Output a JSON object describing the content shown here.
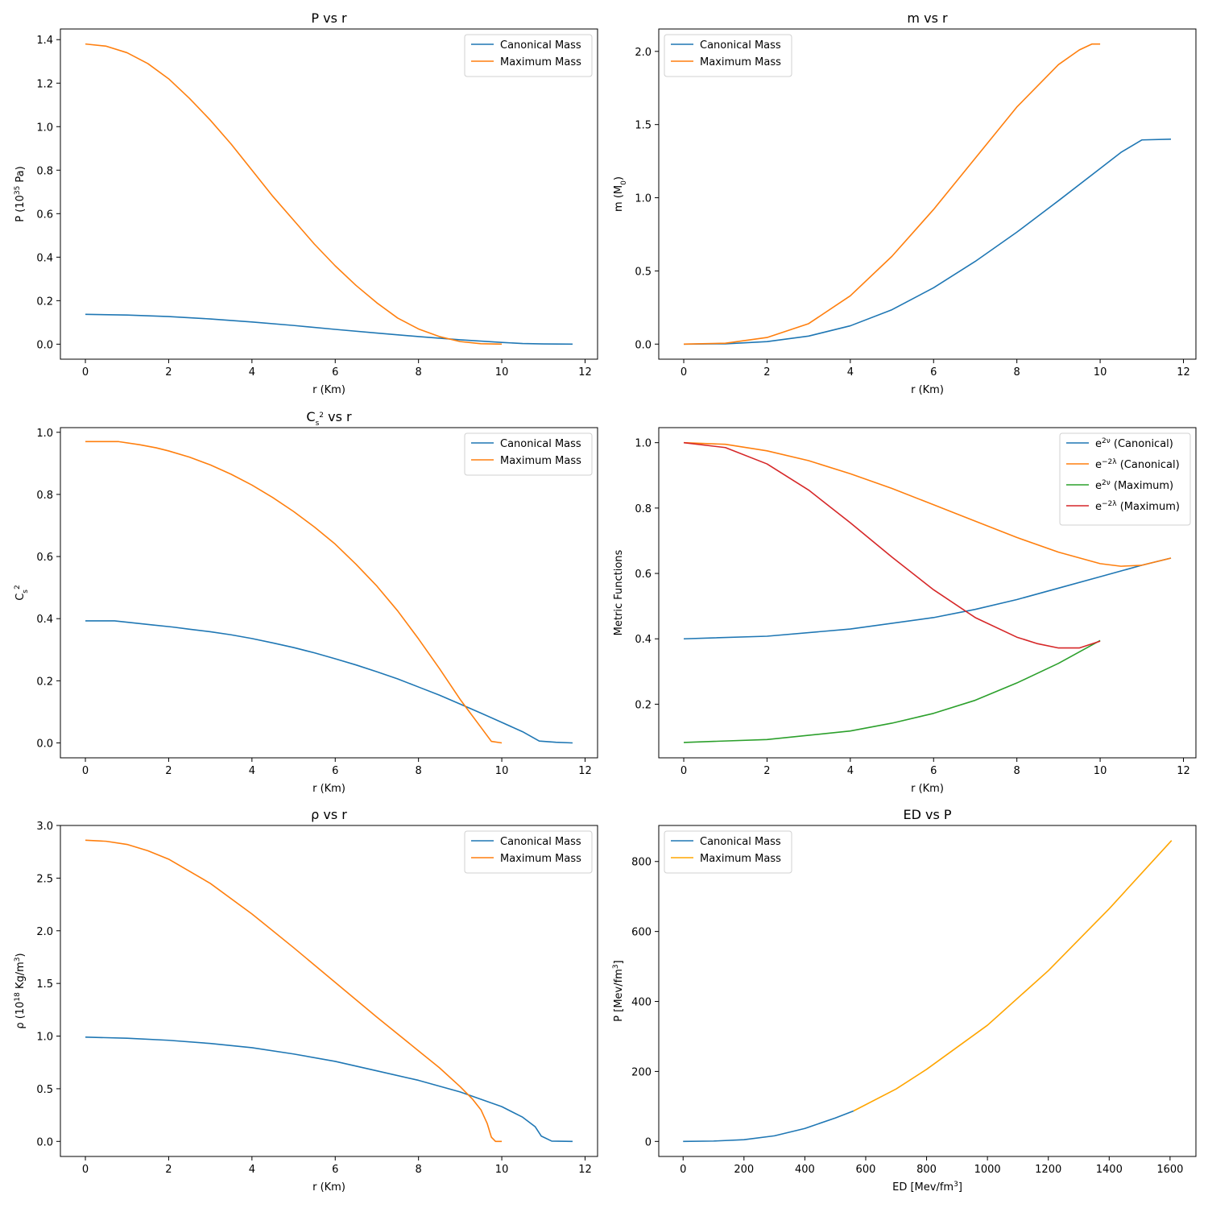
{
  "chart_data": [
    {
      "id": "pressure",
      "type": "line",
      "title": "P vs r",
      "xlabel": "r (Km)",
      "ylabel": "P (10^35 Pa)",
      "xlim": [
        -0.6,
        12.3
      ],
      "ylim": [
        -0.069,
        1.449
      ],
      "xticks": [
        0,
        2,
        4,
        6,
        8,
        10,
        12
      ],
      "yticks": [
        0.0,
        0.2,
        0.4,
        0.6,
        0.8,
        1.0,
        1.2,
        1.4
      ],
      "ytick_decimals": 1,
      "legend": "top-right",
      "series": [
        {
          "name": "Canonical Mass",
          "color": "#1f77b4",
          "x": [
            0,
            1,
            2,
            3,
            4,
            5,
            6,
            7,
            8,
            9,
            10,
            10.5,
            11,
            11.7
          ],
          "y": [
            0.137,
            0.134,
            0.127,
            0.116,
            0.102,
            0.086,
            0.068,
            0.051,
            0.035,
            0.02,
            0.008,
            0.003,
            0.001,
            0.0
          ]
        },
        {
          "name": "Maximum Mass",
          "color": "#ff7f0e",
          "x": [
            0,
            0.5,
            1,
            1.5,
            2,
            2.5,
            3,
            3.5,
            4,
            4.5,
            5,
            5.5,
            6,
            6.5,
            7,
            7.5,
            8,
            8.5,
            9,
            9.5,
            10
          ],
          "y": [
            1.38,
            1.37,
            1.34,
            1.29,
            1.22,
            1.13,
            1.03,
            0.92,
            0.8,
            0.68,
            0.57,
            0.46,
            0.36,
            0.27,
            0.19,
            0.12,
            0.07,
            0.035,
            0.012,
            0.002,
            0.0
          ]
        }
      ]
    },
    {
      "id": "mass",
      "type": "line",
      "title": "m vs r",
      "xlabel": "r (Km)",
      "ylabel": "m (M0)",
      "xlim": [
        -0.6,
        12.3
      ],
      "ylim": [
        -0.103,
        2.153
      ],
      "xticks": [
        0,
        2,
        4,
        6,
        8,
        10,
        12
      ],
      "yticks": [
        0.0,
        0.5,
        1.0,
        1.5,
        2.0
      ],
      "ytick_decimals": 1,
      "legend": "top-left",
      "series": [
        {
          "name": "Canonical Mass",
          "color": "#1f77b4",
          "x": [
            0,
            1,
            2,
            3,
            4,
            5,
            6,
            7,
            8,
            9,
            10,
            10.5,
            11,
            11.7
          ],
          "y": [
            0,
            0.002,
            0.017,
            0.055,
            0.125,
            0.235,
            0.385,
            0.565,
            0.765,
            0.98,
            1.2,
            1.31,
            1.395,
            1.4
          ]
        },
        {
          "name": "Maximum Mass",
          "color": "#ff7f0e",
          "x": [
            0,
            1,
            2,
            3,
            4,
            5,
            6,
            7,
            8,
            9,
            9.5,
            9.8,
            10
          ],
          "y": [
            0,
            0.006,
            0.045,
            0.14,
            0.33,
            0.6,
            0.92,
            1.27,
            1.62,
            1.91,
            2.01,
            2.05,
            2.05
          ]
        }
      ]
    },
    {
      "id": "sound-speed",
      "type": "line",
      "title": "Cs^2 vs r",
      "xlabel": "r (Km)",
      "ylabel": "Cs^2",
      "xlim": [
        -0.6,
        12.3
      ],
      "ylim": [
        -0.048,
        1.015
      ],
      "xticks": [
        0,
        2,
        4,
        6,
        8,
        10,
        12
      ],
      "yticks": [
        0.0,
        0.2,
        0.4,
        0.6,
        0.8,
        1.0
      ],
      "ytick_decimals": 1,
      "legend": "top-right",
      "series": [
        {
          "name": "Canonical Mass",
          "color": "#1f77b4",
          "x": [
            0,
            0.7,
            1.6,
            2.1,
            2.5,
            3,
            3.5,
            4,
            4.5,
            5,
            5.5,
            6,
            6.5,
            7,
            7.5,
            8,
            8.5,
            9,
            9.5,
            10,
            10.5,
            10.9,
            11.3,
            11.7
          ],
          "y": [
            0.393,
            0.393,
            0.38,
            0.373,
            0.366,
            0.358,
            0.348,
            0.336,
            0.322,
            0.307,
            0.29,
            0.271,
            0.251,
            0.229,
            0.206,
            0.18,
            0.154,
            0.125,
            0.096,
            0.066,
            0.036,
            0.006,
            0.002,
            0.0
          ]
        },
        {
          "name": "Maximum Mass",
          "color": "#ff7f0e",
          "x": [
            0,
            0.8,
            1.3,
            1.7,
            2,
            2.5,
            3,
            3.5,
            4,
            4.5,
            5,
            5.5,
            6,
            6.5,
            7,
            7.5,
            8,
            8.5,
            9,
            9.5,
            9.75,
            10
          ],
          "y": [
            0.97,
            0.97,
            0.96,
            0.95,
            0.94,
            0.92,
            0.895,
            0.865,
            0.83,
            0.79,
            0.745,
            0.695,
            0.64,
            0.575,
            0.505,
            0.425,
            0.335,
            0.24,
            0.14,
            0.05,
            0.005,
            0.0
          ]
        }
      ]
    },
    {
      "id": "metric",
      "type": "line",
      "title": "",
      "xlabel": "r (Km)",
      "ylabel": "Metric Functions",
      "xlim": [
        -0.6,
        12.3
      ],
      "ylim": [
        0.036,
        1.046
      ],
      "xticks": [
        0,
        2,
        4,
        6,
        8,
        10,
        12
      ],
      "yticks": [
        0.2,
        0.4,
        0.6,
        0.8,
        1.0
      ],
      "ytick_decimals": 1,
      "legend": "top-right",
      "series": [
        {
          "name": "e^2ν (Canonical)",
          "color": "#1f77b4",
          "x": [
            0,
            2,
            4,
            6,
            7,
            8,
            9,
            10,
            11,
            11.7
          ],
          "y": [
            0.4,
            0.408,
            0.43,
            0.465,
            0.49,
            0.52,
            0.555,
            0.59,
            0.625,
            0.647
          ]
        },
        {
          "name": "e^-2λ (Canonical)",
          "color": "#ff7f0e",
          "x": [
            0,
            1,
            2,
            3,
            4,
            5,
            6,
            7,
            8,
            9,
            10,
            10.5,
            11,
            11.7
          ],
          "y": [
            1.0,
            0.995,
            0.975,
            0.945,
            0.905,
            0.86,
            0.81,
            0.76,
            0.71,
            0.665,
            0.63,
            0.622,
            0.625,
            0.647
          ]
        },
        {
          "name": "e^2ν (Maximum)",
          "color": "#2ca02c",
          "x": [
            0,
            2,
            4,
            5,
            6,
            7,
            8,
            9,
            10
          ],
          "y": [
            0.083,
            0.092,
            0.118,
            0.142,
            0.172,
            0.212,
            0.265,
            0.325,
            0.395
          ]
        },
        {
          "name": "e^-2λ (Maximum)",
          "color": "#d62728",
          "x": [
            0,
            1,
            2,
            3,
            4,
            5,
            6,
            7,
            8,
            8.5,
            9,
            9.5,
            10
          ],
          "y": [
            1.0,
            0.985,
            0.935,
            0.855,
            0.755,
            0.65,
            0.55,
            0.465,
            0.405,
            0.385,
            0.372,
            0.372,
            0.393
          ]
        }
      ]
    },
    {
      "id": "density",
      "type": "line",
      "title": "ρ vs r",
      "xlabel": "r (Km)",
      "ylabel": "ρ (10^18 Kg/m^3)",
      "xlim": [
        -0.6,
        12.3
      ],
      "ylim": [
        -0.143,
        3.0
      ],
      "xticks": [
        0,
        2,
        4,
        6,
        8,
        10,
        12
      ],
      "yticks": [
        0.0,
        0.5,
        1.0,
        1.5,
        2.0,
        2.5,
        3.0
      ],
      "ytick_decimals": 1,
      "legend": "top-right",
      "series": [
        {
          "name": "Canonical Mass",
          "color": "#1f77b4",
          "x": [
            0,
            1,
            2,
            3,
            4,
            5,
            6,
            7,
            8,
            9,
            10,
            10.5,
            10.8,
            10.95,
            11.2,
            11.7
          ],
          "y": [
            0.99,
            0.98,
            0.96,
            0.93,
            0.89,
            0.83,
            0.76,
            0.67,
            0.58,
            0.47,
            0.33,
            0.23,
            0.14,
            0.05,
            0.003,
            0.0
          ]
        },
        {
          "name": "Maximum Mass",
          "color": "#ff7f0e",
          "x": [
            0,
            0.5,
            1,
            1.5,
            2,
            3,
            4,
            5,
            6,
            7,
            8,
            8.5,
            9,
            9.3,
            9.5,
            9.65,
            9.75,
            9.85,
            10
          ],
          "y": [
            2.86,
            2.85,
            2.82,
            2.76,
            2.68,
            2.45,
            2.16,
            1.84,
            1.51,
            1.18,
            0.86,
            0.7,
            0.52,
            0.4,
            0.3,
            0.17,
            0.04,
            0.0,
            0.0
          ]
        }
      ]
    },
    {
      "id": "eos",
      "type": "line",
      "title": "ED vs P",
      "xlabel": "ED [Mev/fm^3]",
      "ylabel": "P [Mev/fm^3]",
      "xlim": [
        -80,
        1685
      ],
      "ylim": [
        -43,
        903
      ],
      "xticks": [
        0,
        200,
        400,
        600,
        800,
        1000,
        1200,
        1400,
        1600
      ],
      "yticks": [
        0,
        200,
        400,
        600,
        800
      ],
      "ytick_decimals": 0,
      "legend": "top-left",
      "series": [
        {
          "name": "Canonical Mass",
          "color": "#1f77b4",
          "x": [
            0,
            100,
            200,
            300,
            400,
            500,
            560
          ],
          "y": [
            0,
            1,
            5,
            16,
            37,
            67,
            87
          ]
        },
        {
          "name": "Maximum Mass",
          "color": "#ffa500",
          "x": [
            560,
            700,
            800,
            1000,
            1200,
            1400,
            1605
          ],
          "y": [
            87,
            150,
            206,
            332,
            488,
            665,
            860
          ]
        }
      ]
    }
  ]
}
